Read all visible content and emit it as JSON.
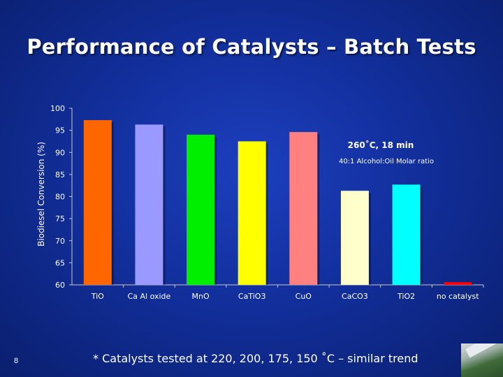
{
  "slide": {
    "title": "Performance of Catalysts – Batch Tests",
    "number": "8",
    "footnote": "* Catalysts tested at 220, 200, 175, 150 ˚C – similar trend"
  },
  "chart_data": {
    "type": "bar",
    "title": "",
    "xlabel": "",
    "ylabel": "Biodiesel Conversion (%)",
    "ylim": [
      60,
      100
    ],
    "yticks": [
      "60",
      "65",
      "70",
      "75",
      "80",
      "85",
      "90",
      "95",
      "100"
    ],
    "categories": [
      "TiO",
      "Ca Al oxide",
      "MnO",
      "CaTiO3",
      "CuO",
      "CaCO3",
      "TiO2",
      "no catalyst"
    ],
    "values": [
      97.3,
      96.3,
      94.0,
      92.5,
      94.6,
      81.3,
      82.7,
      60.6
    ],
    "colors": [
      "#ff6600",
      "#9999ff",
      "#00ee00",
      "#ffff00",
      "#ff8080",
      "#ffffcc",
      "#00ffff",
      "#ff0000"
    ],
    "annotations": {
      "condition": "260˚C, 18 min",
      "ratio": "40:1 Alcohol:Oil Molar ratio"
    },
    "grid": false,
    "legend": "none"
  }
}
